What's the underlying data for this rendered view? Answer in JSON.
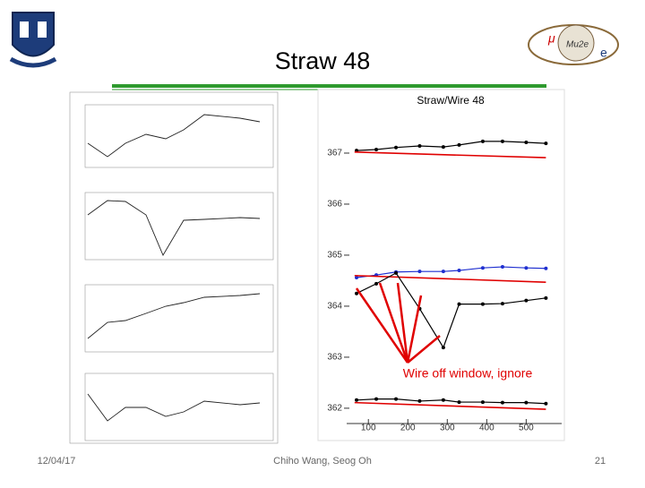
{
  "slide": {
    "title": "Straw 48",
    "footer": {
      "date": "12/04/17",
      "authors": "Chiho Wang, Seog Oh",
      "page": "21"
    }
  },
  "chart_data": {
    "type": "line",
    "title": "Straw/Wire 48",
    "annotation": "Wire  off window, ignore",
    "xlim": [
      45,
      590
    ],
    "xticks": [
      100,
      200,
      300,
      400,
      500
    ],
    "ylim": [
      361.7,
      368.2
    ],
    "yticks": [
      362,
      363,
      364,
      365,
      366,
      367
    ],
    "series": [
      {
        "color": "#000000",
        "markers": true,
        "x": [
          70,
          120,
          170,
          230,
          290,
          330,
          390,
          440,
          500,
          550
        ],
        "values": [
          367.05,
          367.07,
          367.11,
          367.14,
          367.12,
          367.16,
          367.23,
          367.23,
          367.21,
          367.19
        ]
      },
      {
        "color": "#e00000",
        "markers": false,
        "x": [
          65,
          550
        ],
        "values": [
          367.02,
          366.91
        ]
      },
      {
        "color": "#1f2fd0",
        "markers": true,
        "x": [
          70,
          120,
          170,
          230,
          290,
          330,
          390,
          440,
          500,
          550
        ],
        "values": [
          364.56,
          364.61,
          364.67,
          364.68,
          364.68,
          364.7,
          364.75,
          364.77,
          364.75,
          364.74
        ]
      },
      {
        "color": "#e00000",
        "markers": false,
        "x": [
          65,
          550
        ],
        "values": [
          364.6,
          364.47
        ]
      },
      {
        "color": "#000000",
        "markers": true,
        "x": [
          70,
          120,
          170,
          230,
          290,
          330,
          390,
          440,
          500,
          550
        ],
        "values": [
          364.25,
          364.44,
          364.65,
          363.95,
          363.19,
          364.04,
          364.04,
          364.05,
          364.11,
          364.16
        ]
      },
      {
        "color": "#000000",
        "markers": true,
        "x": [
          70,
          120,
          170,
          230,
          290,
          330,
          390,
          440,
          500,
          550
        ],
        "values": [
          362.16,
          362.18,
          362.18,
          362.14,
          362.16,
          362.12,
          362.12,
          362.11,
          362.11,
          362.09
        ]
      },
      {
        "color": "#e00000",
        "markers": false,
        "x": [
          65,
          550
        ],
        "values": [
          362.11,
          361.98
        ]
      }
    ]
  }
}
